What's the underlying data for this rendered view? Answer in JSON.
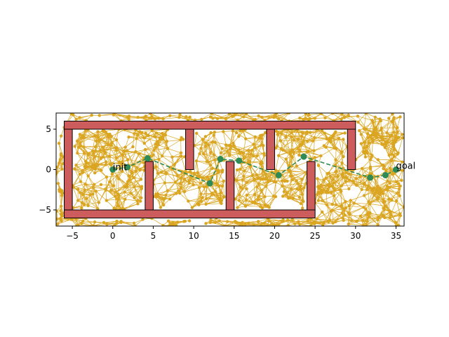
{
  "chart_data": {
    "type": "scatter",
    "title": "",
    "xlabel": "",
    "ylabel": "",
    "xlim": [
      -7,
      36
    ],
    "ylim": [
      -7,
      7
    ],
    "xticks": [
      -5,
      0,
      5,
      10,
      15,
      20,
      25,
      30,
      35
    ],
    "yticks": [
      -5,
      0,
      5
    ],
    "xtick_labels": [
      "−5",
      "0",
      "5",
      "10",
      "15",
      "20",
      "25",
      "30",
      "35"
    ],
    "ytick_labels": [
      "−5",
      "0",
      "5"
    ],
    "grid": false,
    "colors": {
      "obstacle_fill": "#cd5c5c",
      "obstacle_edge": "#000000",
      "roadmap": "#daa520",
      "path": "#2e8b57"
    },
    "obstacles": [
      {
        "x0": -6,
        "x1": 30,
        "y0": 5,
        "y1": 6
      },
      {
        "x0": -6,
        "x1": 25,
        "y0": -6,
        "y1": -5
      },
      {
        "x0": -6,
        "x1": -5,
        "y0": -5,
        "y1": 5
      },
      {
        "x0": 4,
        "x1": 5,
        "y0": -5,
        "y1": 1
      },
      {
        "x0": 9,
        "x1": 10,
        "y0": 0,
        "y1": 5
      },
      {
        "x0": 14,
        "x1": 15,
        "y0": -5,
        "y1": 1
      },
      {
        "x0": 19,
        "x1": 20,
        "y0": 0,
        "y1": 5
      },
      {
        "x0": 24,
        "x1": 25,
        "y0": -5,
        "y1": 1
      },
      {
        "x0": 29,
        "x1": 30,
        "y0": 0,
        "y1": 5
      }
    ],
    "roadmap_summary": {
      "description": "dense probabilistic roadmap of sampled nodes with edges to near neighbours",
      "approx_nodes": 1000,
      "x_range": [
        -7,
        36
      ],
      "y_range": [
        -7,
        7
      ]
    },
    "path": {
      "x": [
        0,
        1.8,
        4.3,
        12,
        13.3,
        15.6,
        20.5,
        23.6,
        31.8,
        33.7,
        35
      ],
      "y": [
        0,
        0.3,
        1.4,
        -1.7,
        1.3,
        1.1,
        -0.7,
        1.6,
        -1.0,
        -0.7,
        0
      ]
    },
    "annotations": [
      {
        "text": "init",
        "x": 0,
        "y": 0
      },
      {
        "text": "goal",
        "x": 35,
        "y": 0
      }
    ]
  }
}
